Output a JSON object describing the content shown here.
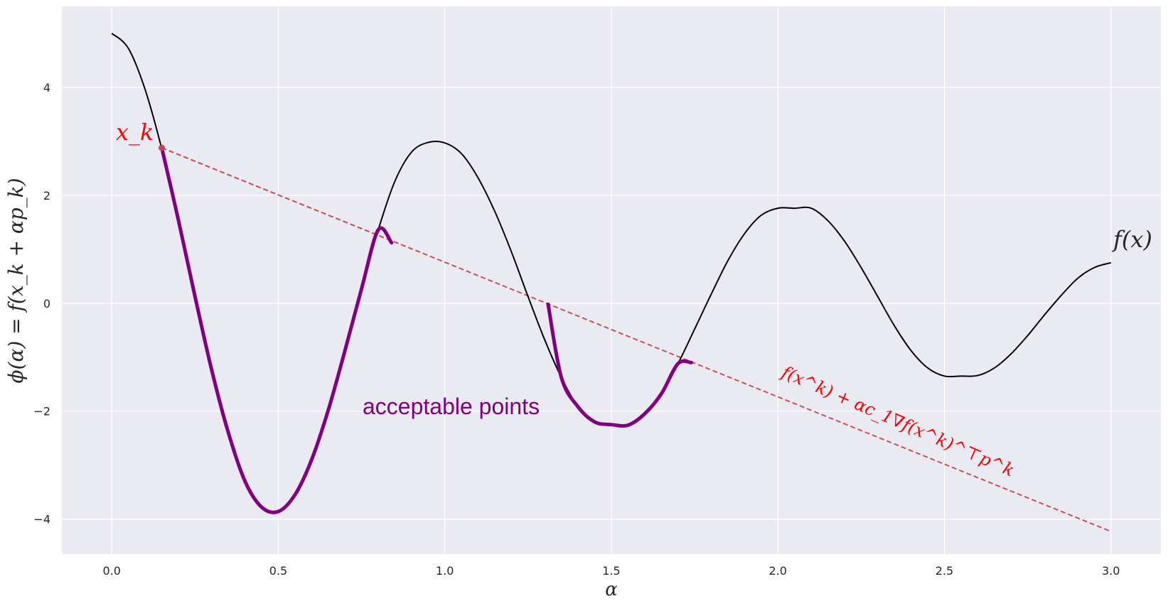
{
  "chart_data": {
    "type": "line",
    "xlabel": "α",
    "ylabel": "ϕ(α) = f(x_k + αp_k)",
    "xlim": [
      -0.15,
      3.15
    ],
    "ylim": [
      -4.65,
      5.5
    ],
    "xticks": [
      0.0,
      0.5,
      1.0,
      1.5,
      2.0,
      2.5,
      3.0
    ],
    "xtick_labels": [
      "0.0",
      "0.5",
      "1.0",
      "1.5",
      "2.0",
      "2.5",
      "3.0"
    ],
    "yticks": [
      -4,
      -2,
      0,
      2,
      4
    ],
    "ytick_labels": [
      "−4",
      "−2",
      "0",
      "2",
      "4"
    ],
    "grid": true,
    "background": "#eaeaf2",
    "function": {
      "x": [
        0.0,
        0.05,
        0.1,
        0.15,
        0.2,
        0.25,
        0.3,
        0.35,
        0.4,
        0.45,
        0.5,
        0.55,
        0.6,
        0.65,
        0.7,
        0.75,
        0.8,
        0.85,
        0.9,
        0.95,
        1.0,
        1.05,
        1.1,
        1.15,
        1.2,
        1.25,
        1.3,
        1.35,
        1.4,
        1.45,
        1.5,
        1.55,
        1.6,
        1.65,
        1.7,
        1.75,
        1.8,
        1.85,
        1.9,
        1.95,
        2.0,
        2.05,
        2.1,
        2.15,
        2.2,
        2.25,
        2.3,
        2.35,
        2.4,
        2.45,
        2.5,
        2.55,
        2.6,
        2.65,
        2.7,
        2.75,
        2.8,
        2.85,
        2.9,
        2.95,
        3.0
      ],
      "y": [
        5.0,
        4.72,
        3.96,
        2.86,
        1.54,
        0.12,
        -1.24,
        -2.4,
        -3.3,
        -3.78,
        -3.86,
        -3.55,
        -2.9,
        -1.98,
        -0.88,
        0.27,
        1.36,
        2.26,
        2.8,
        2.98,
        2.97,
        2.77,
        2.32,
        1.7,
        0.95,
        0.12,
        -0.68,
        -1.38,
        -1.92,
        -2.2,
        -2.25,
        -2.26,
        -2.05,
        -1.68,
        -1.12,
        -0.48,
        0.17,
        0.79,
        1.29,
        1.63,
        1.76,
        1.76,
        1.76,
        1.53,
        1.15,
        0.66,
        0.12,
        -0.42,
        -0.88,
        -1.2,
        -1.35,
        -1.35,
        -1.34,
        -1.2,
        -0.94,
        -0.6,
        -0.22,
        0.14,
        0.46,
        0.66,
        0.75
      ],
      "color": "#000000"
    },
    "acceptable_segments": [
      {
        "x": [
          0.15,
          0.2,
          0.25,
          0.3,
          0.35,
          0.4,
          0.45,
          0.5,
          0.55,
          0.6,
          0.65,
          0.7,
          0.75,
          0.8,
          0.84
        ],
        "y": [
          2.88,
          1.54,
          0.12,
          -1.24,
          -2.4,
          -3.3,
          -3.78,
          -3.86,
          -3.55,
          -2.9,
          -1.98,
          -0.88,
          0.27,
          1.36,
          1.12
        ]
      },
      {
        "x": [
          1.31,
          1.35,
          1.4,
          1.45,
          1.5,
          1.55,
          1.6,
          1.65,
          1.7,
          1.74
        ],
        "y": [
          -0.02,
          -1.38,
          -1.92,
          -2.2,
          -2.25,
          -2.26,
          -2.05,
          -1.68,
          -1.12,
          -1.1
        ]
      }
    ],
    "acceptable_color": "#800080",
    "armijo_line": {
      "x": [
        0.15,
        3.0
      ],
      "y": [
        2.88,
        -4.23
      ],
      "color": "#d0474f"
    },
    "start_point": {
      "x": 0.15,
      "y": 2.88,
      "color": "#b5475e"
    },
    "annotations": {
      "xk": "x_k",
      "fx": "f(x)",
      "acceptable": "acceptable points",
      "armijo": "f(x^k) + αc_1∇f(x^k)^⊤p^k"
    }
  }
}
